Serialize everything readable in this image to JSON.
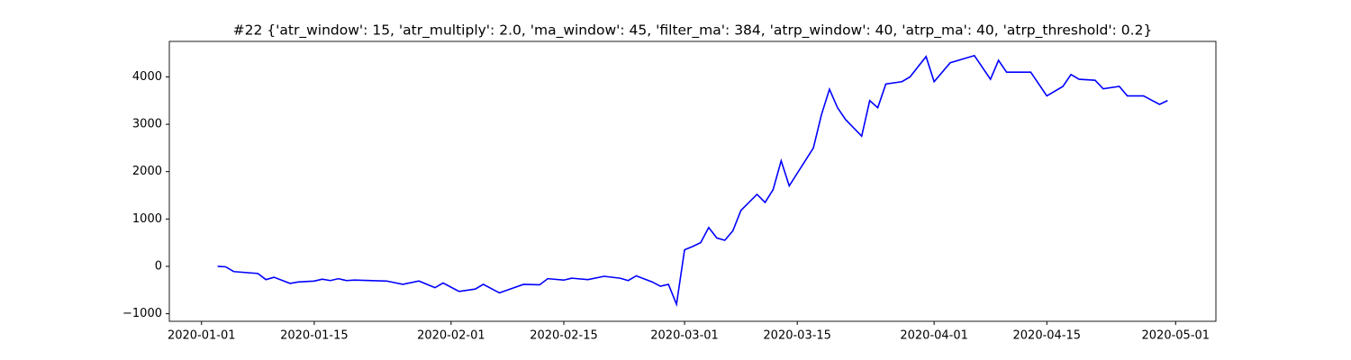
{
  "chart_data": {
    "type": "line",
    "title": "#22 {'atr_window': 15, 'atr_multiply': 2.0, 'ma_window': 45, 'filter_ma': 384, 'atrp_window': 40, 'atrp_ma': 40, 'atrp_threshold': 0.2}",
    "x": [
      "2020-01-03",
      "2020-01-04",
      "2020-01-05",
      "2020-01-08",
      "2020-01-09",
      "2020-01-10",
      "2020-01-12",
      "2020-01-13",
      "2020-01-15",
      "2020-01-16",
      "2020-01-17",
      "2020-01-18",
      "2020-01-19",
      "2020-01-20",
      "2020-01-24",
      "2020-01-26",
      "2020-01-28",
      "2020-01-30",
      "2020-01-31",
      "2020-02-02",
      "2020-02-04",
      "2020-02-05",
      "2020-02-07",
      "2020-02-08",
      "2020-02-10",
      "2020-02-12",
      "2020-02-13",
      "2020-02-15",
      "2020-02-16",
      "2020-02-18",
      "2020-02-20",
      "2020-02-22",
      "2020-02-23",
      "2020-02-24",
      "2020-02-26",
      "2020-02-27",
      "2020-02-28",
      "2020-02-29",
      "2020-03-01",
      "2020-03-02",
      "2020-03-03",
      "2020-03-04",
      "2020-03-05",
      "2020-03-06",
      "2020-03-07",
      "2020-03-08",
      "2020-03-10",
      "2020-03-11",
      "2020-03-12",
      "2020-03-13",
      "2020-03-14",
      "2020-03-17",
      "2020-03-18",
      "2020-03-19",
      "2020-03-20",
      "2020-03-21",
      "2020-03-23",
      "2020-03-24",
      "2020-03-25",
      "2020-03-26",
      "2020-03-28",
      "2020-03-29",
      "2020-03-31",
      "2020-04-01",
      "2020-04-03",
      "2020-04-06",
      "2020-04-08",
      "2020-04-09",
      "2020-04-10",
      "2020-04-13",
      "2020-04-15",
      "2020-04-17",
      "2020-04-18",
      "2020-04-19",
      "2020-04-21",
      "2020-04-22",
      "2020-04-24",
      "2020-04-25",
      "2020-04-27",
      "2020-04-29",
      "2020-04-30"
    ],
    "series": [
      {
        "color": "#0000ff",
        "values": [
          0,
          -10,
          -110,
          -150,
          -280,
          -230,
          -360,
          -330,
          -310,
          -270,
          -300,
          -260,
          -300,
          -290,
          -310,
          -380,
          -310,
          -450,
          -350,
          -530,
          -480,
          -380,
          -560,
          -500,
          -380,
          -390,
          -260,
          -290,
          -250,
          -280,
          -210,
          -250,
          -300,
          -200,
          -330,
          -420,
          -380,
          -800,
          350,
          420,
          500,
          820,
          600,
          550,
          750,
          1180,
          1520,
          1350,
          1620,
          2230,
          1700,
          2500,
          3200,
          3740,
          3350,
          3100,
          2750,
          3500,
          3350,
          3850,
          3900,
          4000,
          4430,
          3900,
          4300,
          4450,
          3950,
          4350,
          4100,
          4100,
          3600,
          3800,
          4050,
          3950,
          3930,
          3750,
          3800,
          3600,
          3600,
          3420,
          3500
        ]
      }
    ],
    "xlim": [
      "2019-12-28",
      "2020-05-06"
    ],
    "xticks": [
      "2020-01-01",
      "2020-01-15",
      "2020-02-01",
      "2020-02-15",
      "2020-03-01",
      "2020-03-15",
      "2020-04-01",
      "2020-04-15",
      "2020-05-01"
    ],
    "ylim": [
      -1160,
      4750
    ],
    "yticks": [
      {
        "value": -1000,
        "label": "−1000"
      },
      0,
      1000,
      2000,
      3000,
      4000
    ]
  }
}
